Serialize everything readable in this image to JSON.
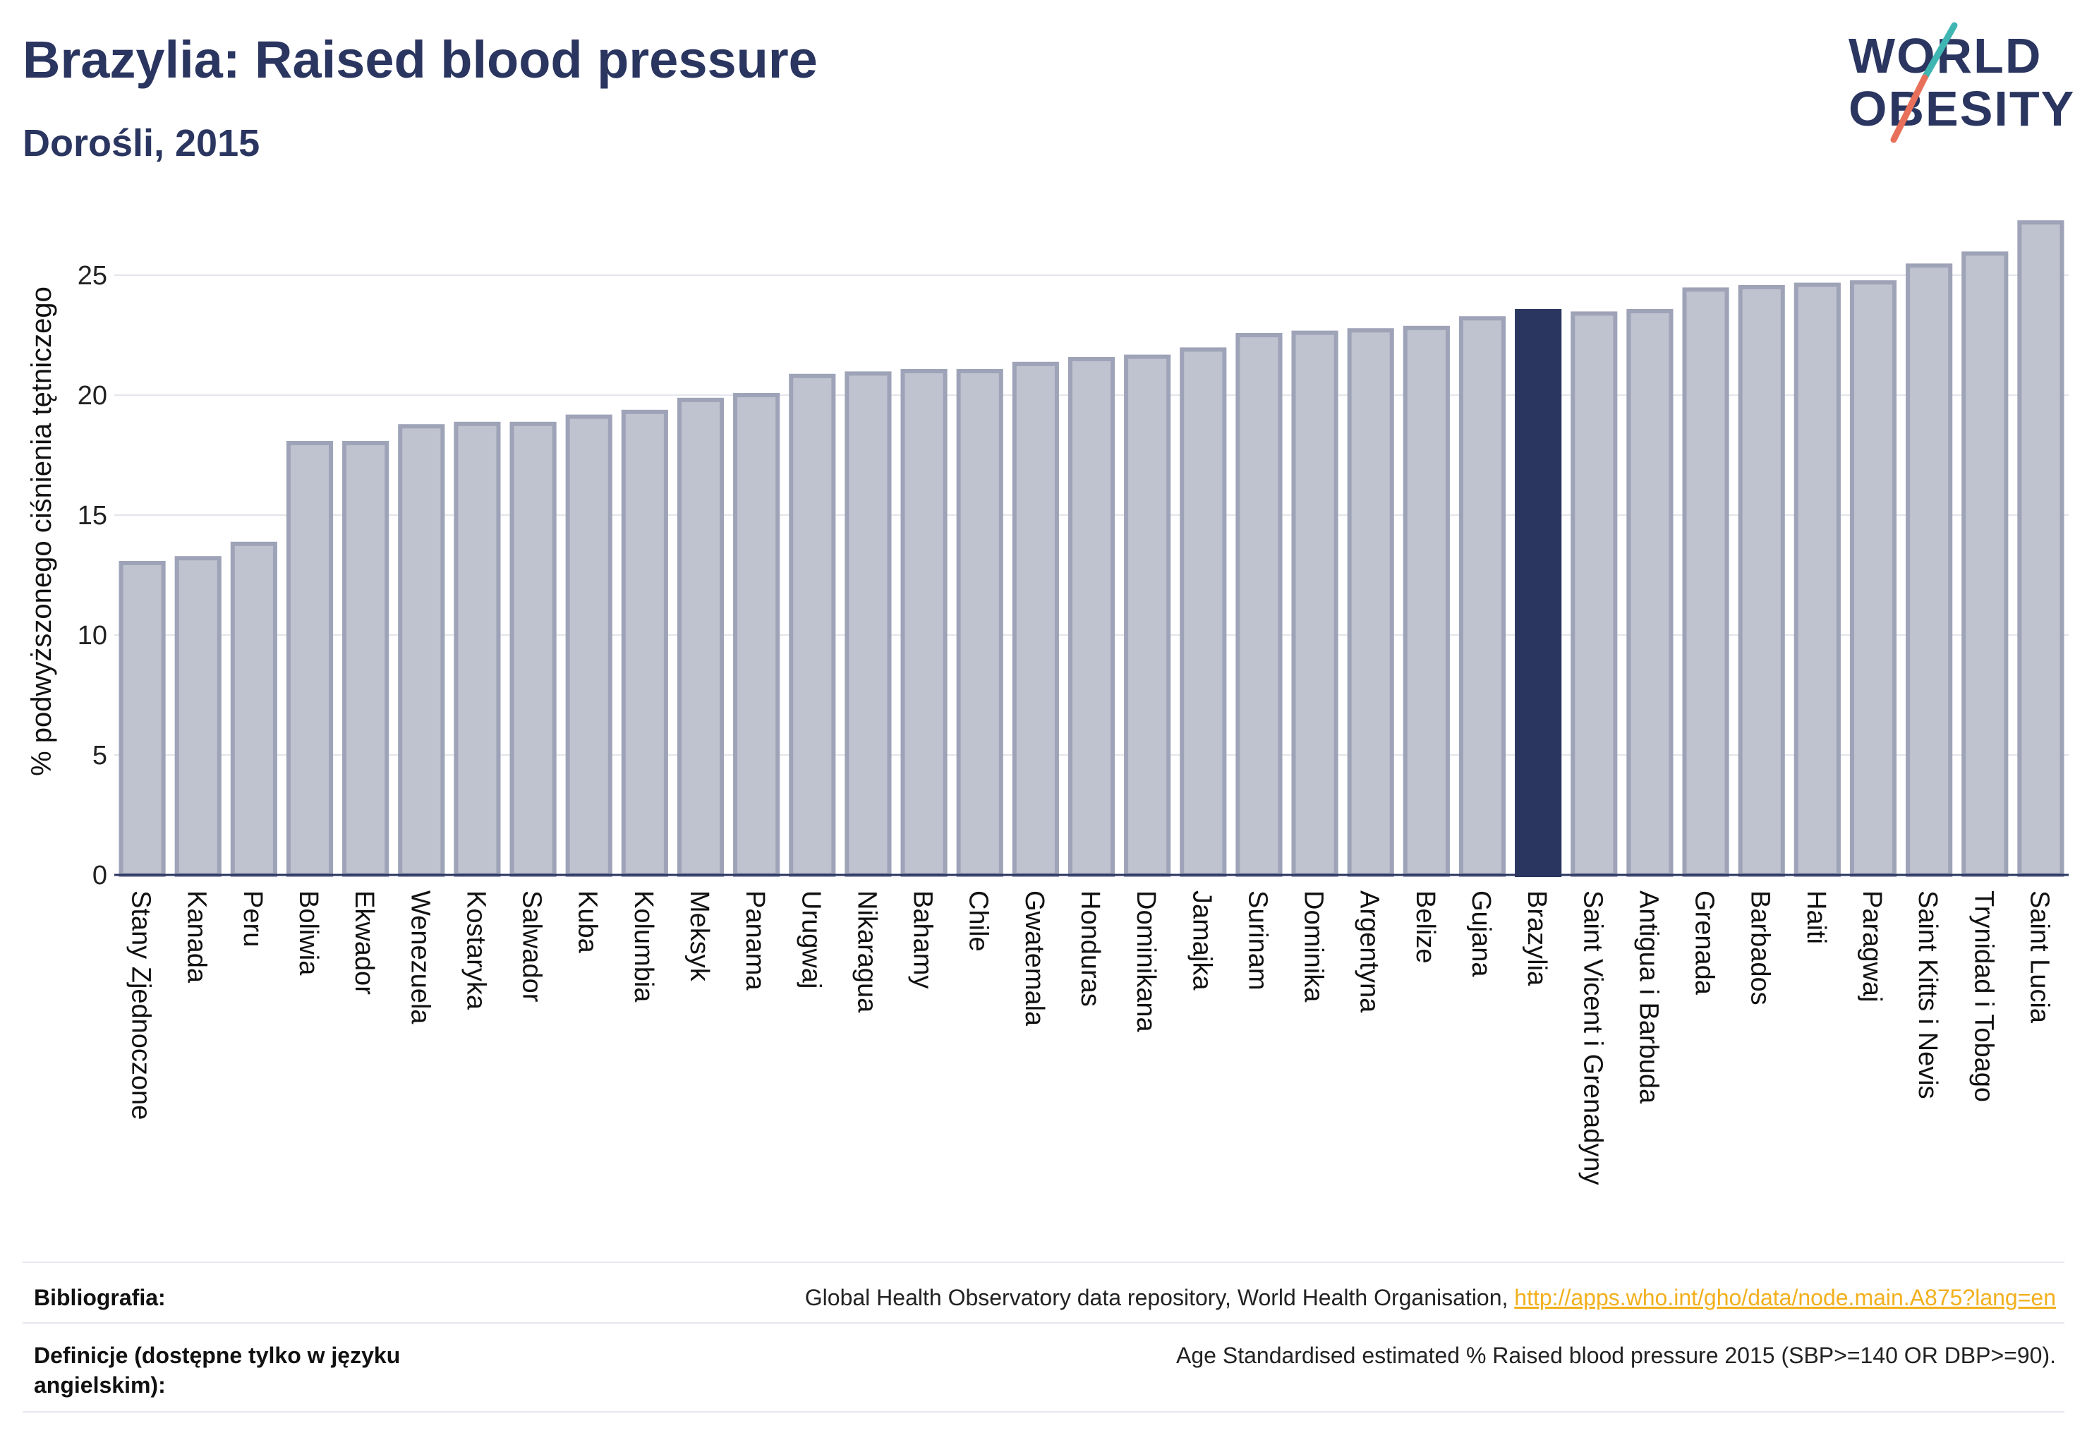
{
  "header": {
    "title": "Brazylia: Raised blood pressure",
    "subtitle": "Dorośli, 2015"
  },
  "logo": {
    "line1": "WORLD",
    "line2": "OBESITY"
  },
  "colors": {
    "bar_default": "#bfc2cf",
    "bar_border": "#9ea3b8",
    "bar_highlight": "#2a3560",
    "title": "#2a3560",
    "link": "#f2b01e",
    "logo_teal": "#3fb6b2",
    "logo_coral": "#e8705a"
  },
  "chart_data": {
    "type": "bar",
    "ylabel": "% podwyższonego ciśnienia tętniczego",
    "xlabel": "",
    "ylim": [
      0,
      27.5
    ],
    "yticks": [
      0,
      5,
      10,
      15,
      20,
      25
    ],
    "grid": true,
    "highlight": "Brazylia",
    "categories": [
      "Stany Zjednoczone",
      "Kanada",
      "Peru",
      "Boliwia",
      "Ekwador",
      "Wenezuela",
      "Kostaryka",
      "Salwador",
      "Kuba",
      "Kolumbia",
      "Meksyk",
      "Panama",
      "Urugwaj",
      "Nikaragua",
      "Bahamy",
      "Chile",
      "Gwatemala",
      "Honduras",
      "Dominikana",
      "Jamajka",
      "Surinam",
      "Dominika",
      "Argentyna",
      "Belize",
      "Gujana",
      "Brazylia",
      "Saint Vicent i Grenadyny",
      "Antigua i Barbuda",
      "Grenada",
      "Barbados",
      "Haiti",
      "Paragwaj",
      "Saint Kitts i Nevis",
      "Trynidad i Tobago",
      "Saint Lucia"
    ],
    "values": [
      13.0,
      13.2,
      13.8,
      18.0,
      18.0,
      18.7,
      18.8,
      18.8,
      19.1,
      19.3,
      19.8,
      20.0,
      20.8,
      20.9,
      21.0,
      21.0,
      21.3,
      21.5,
      21.6,
      21.9,
      22.5,
      22.6,
      22.7,
      22.8,
      23.2,
      23.5,
      23.4,
      23.5,
      24.4,
      24.5,
      24.6,
      24.7,
      25.4,
      25.9,
      27.2
    ]
  },
  "footer": {
    "bibliography_label": "Bibliografia:",
    "bibliography_text": "Global Health Observatory data repository, World Health Organisation, ",
    "bibliography_link": "http://apps.who.int/gho/data/node.main.A875?lang=en",
    "definitions_label": "Definicje (dostępne tylko w języku angielskim):",
    "definitions_text": "Age Standardised estimated % Raised blood pressure 2015 (SBP>=140 OR DBP>=90)."
  }
}
